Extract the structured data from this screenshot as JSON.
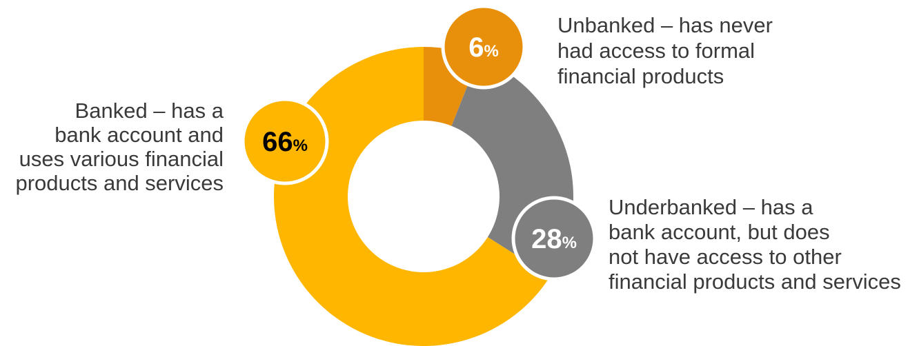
{
  "chart_data": {
    "type": "pie",
    "donut": true,
    "slices": [
      {
        "key": "unbanked",
        "value": 6,
        "value_label": "6",
        "percent_sign": "%",
        "color": "#E8900C",
        "text_color": "#ffffff",
        "description": [
          "Unbanked – has never",
          "had access to formal",
          "financial products"
        ]
      },
      {
        "key": "underbanked",
        "value": 28,
        "value_label": "28",
        "percent_sign": "%",
        "color": "#7F7F7F",
        "text_color": "#ffffff",
        "description": [
          "Underbanked – has a",
          "bank account, but does",
          "not have access to other",
          "financial products and services"
        ]
      },
      {
        "key": "banked",
        "value": 66,
        "value_label": "66",
        "percent_sign": "%",
        "color": "#FFB600",
        "text_color": "#000000",
        "description": [
          "Banked – has a",
          "bank account and",
          "uses various financial",
          "products and services"
        ]
      }
    ],
    "start_angle_deg": 0,
    "direction": "clockwise"
  }
}
